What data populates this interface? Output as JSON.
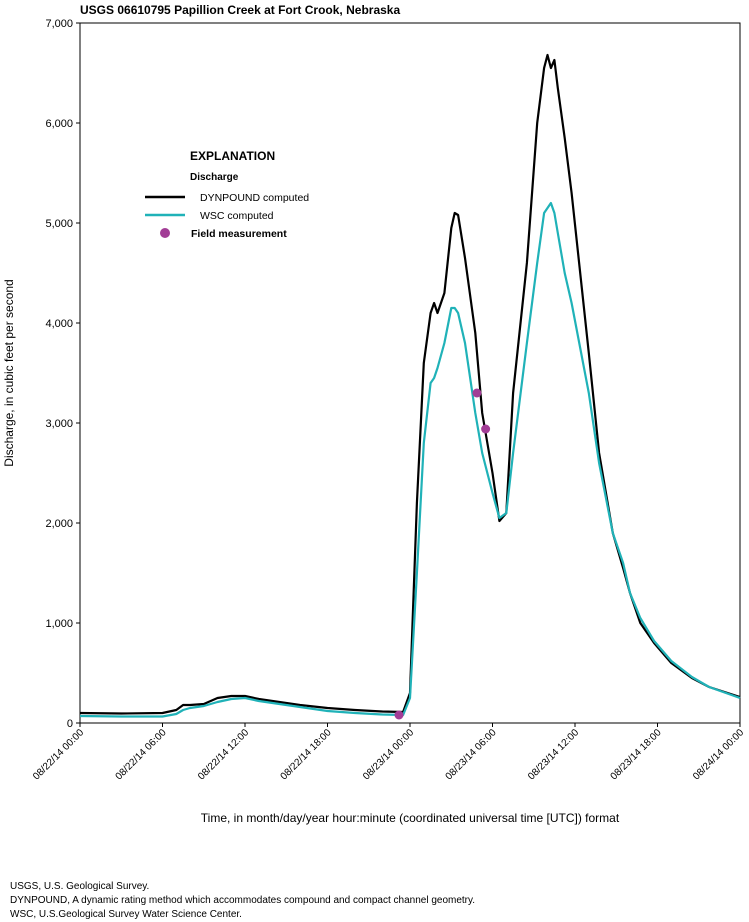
{
  "chart_data": {
    "type": "line",
    "title": "USGS 06610795 Papillion Creek at Fort Crook, Nebraska",
    "xlabel": "Time, in month/day/year hour:minute (coordinated universal time [UTC]) format",
    "ylabel": "Discharge, in cubic feet per second",
    "legend_title": "EXPLANATION",
    "legend_subtitle": "Discharge",
    "x": [
      "08/22/14 00:00",
      "08/22/14 03:00",
      "08/22/14 06:00",
      "08/22/14 07:00",
      "08/22/14 07:30",
      "08/22/14 08:00",
      "08/22/14 09:00",
      "08/22/14 10:00",
      "08/22/14 11:00",
      "08/22/14 12:00",
      "08/22/14 13:00",
      "08/22/14 14:00",
      "08/22/14 16:00",
      "08/22/14 18:00",
      "08/22/14 20:00",
      "08/22/14 22:00",
      "08/22/14 23:30",
      "08/23/14 00:00",
      "08/23/14 00:30",
      "08/23/14 01:00",
      "08/23/14 01:30",
      "08/23/14 01:45",
      "08/23/14 02:00",
      "08/23/14 02:30",
      "08/23/14 03:00",
      "08/23/14 03:15",
      "08/23/14 03:30",
      "08/23/14 04:00",
      "08/23/14 04:45",
      "08/23/14 05:15",
      "08/23/14 06:00",
      "08/23/14 06:30",
      "08/23/14 07:00",
      "08/23/14 07:30",
      "08/23/14 08:30",
      "08/23/14 09:15",
      "08/23/14 09:45",
      "08/23/14 10:00",
      "08/23/14 10:15",
      "08/23/14 10:30",
      "08/23/14 10:45",
      "08/23/14 11:15",
      "08/23/14 11:45",
      "08/23/14 13:00",
      "08/23/14 13:45",
      "08/23/14 14:45",
      "08/23/14 15:30",
      "08/23/14 16:00",
      "08/23/14 16:45",
      "08/23/14 17:45",
      "08/23/14 19:00",
      "08/23/14 20:30",
      "08/23/14 21:45",
      "08/24/14 00:00"
    ],
    "series": [
      {
        "name": "DYNPOUND computed",
        "color": "#000000",
        "kind": "line",
        "values": [
          100,
          95,
          100,
          130,
          180,
          180,
          190,
          250,
          270,
          270,
          240,
          220,
          180,
          150,
          130,
          115,
          110,
          300,
          2200,
          3600,
          4100,
          4200,
          4100,
          4300,
          4950,
          5100,
          5080,
          4650,
          3900,
          3100,
          2500,
          2020,
          2100,
          3300,
          4600,
          6000,
          6550,
          6680,
          6550,
          6630,
          6350,
          5850,
          5300,
          3700,
          2700,
          1900,
          1550,
          1300,
          1000,
          800,
          600,
          450,
          360,
          260
        ]
      },
      {
        "name": "WSC computed",
        "color": "#20b2b8",
        "kind": "line",
        "values": [
          70,
          65,
          65,
          90,
          130,
          150,
          170,
          210,
          240,
          250,
          220,
          200,
          160,
          120,
          100,
          85,
          80,
          250,
          1500,
          2800,
          3400,
          3450,
          3550,
          3800,
          4150,
          4150,
          4100,
          3800,
          3100,
          2700,
          2300,
          2050,
          2100,
          2700,
          3800,
          4600,
          5100,
          5150,
          5200,
          5100,
          4900,
          4500,
          4200,
          3300,
          2600,
          1900,
          1600,
          1300,
          1050,
          820,
          620,
          460,
          360,
          250
        ]
      },
      {
        "name": "Field measurement",
        "color": "#a23d96",
        "kind": "point",
        "x": [
          "08/22/14 23:12",
          "08/23/14 04:52",
          "08/23/14 05:30"
        ],
        "values": [
          80,
          3300,
          2940
        ]
      }
    ],
    "xlim": [
      "08/22/14 00:00",
      "08/24/14 00:00"
    ],
    "xticks": [
      "08/22/14 00:00",
      "08/22/14 06:00",
      "08/22/14 12:00",
      "08/22/14 18:00",
      "08/23/14 00:00",
      "08/23/14 06:00",
      "08/23/14 12:00",
      "08/23/14 18:00",
      "08/24/14 00:00"
    ],
    "ylim": [
      0,
      7000
    ],
    "yticks": [
      0,
      {
        "value": 1000,
        "label": "1,000"
      },
      {
        "value": 2000,
        "label": "2,000"
      },
      {
        "value": 3000,
        "label": "3,000"
      },
      {
        "value": 4000,
        "label": "4,000"
      },
      {
        "value": 5000,
        "label": "5,000"
      },
      {
        "value": 6000,
        "label": "6,000"
      },
      {
        "value": 7000,
        "label": "7,000"
      }
    ],
    "notes": [
      "USGS, U.S. Geological Survey.",
      "DYNPOUND, A dynamic rating method which accommodates compound and compact channel geometry.",
      "WSC, U.S.Geological Survey Water Science Center."
    ]
  }
}
